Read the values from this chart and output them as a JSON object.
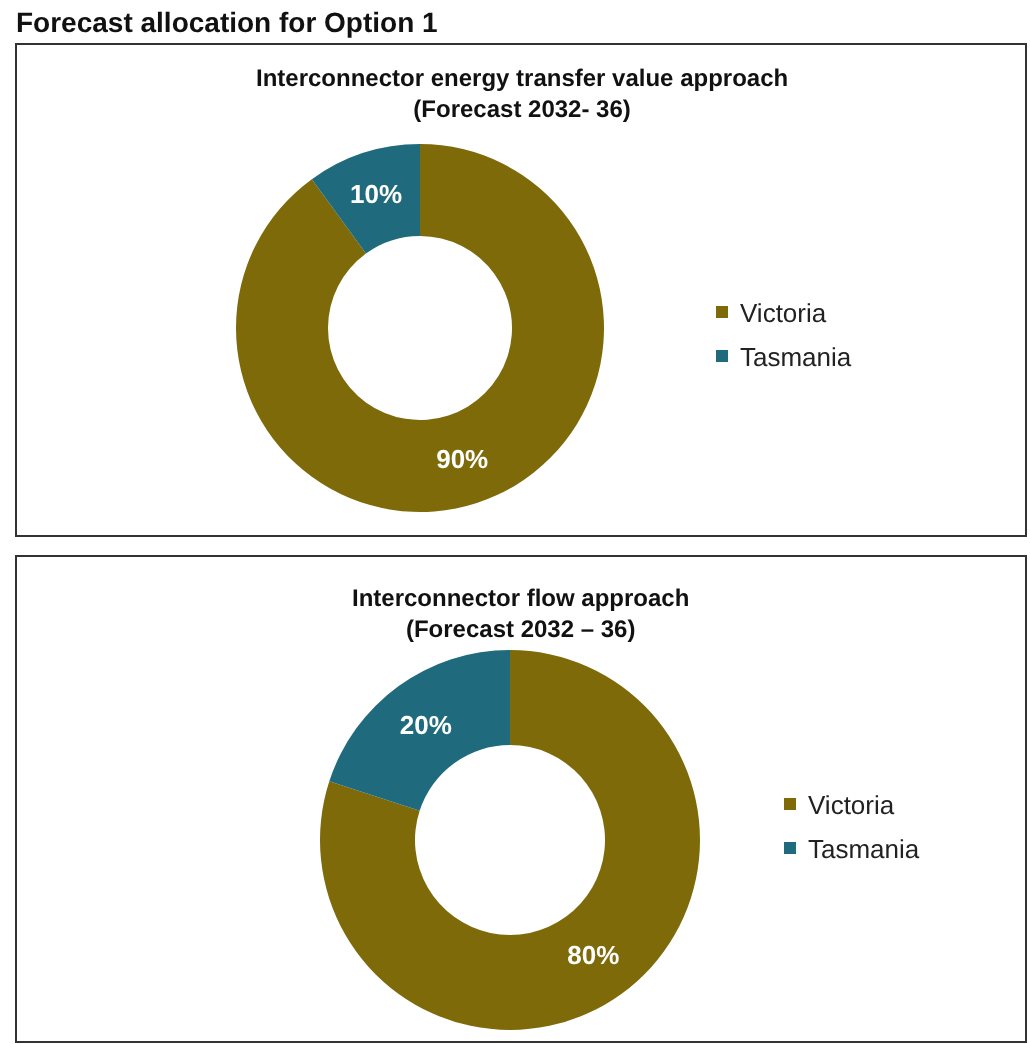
{
  "chart_data": [
    {
      "type": "donut",
      "title": "Interconnector energy transfer value approach\n(Forecast 2032- 36)",
      "annotations": [
        "Forecast allocation for Option 1"
      ],
      "categories": [
        "Victoria",
        "Tasmania"
      ],
      "values": [
        90,
        10
      ],
      "value_labels": [
        "90%",
        "10%"
      ],
      "colors": [
        "#7f6a0a",
        "#1f6b7d"
      ],
      "legend": "right"
    },
    {
      "type": "donut",
      "title": "Interconnector flow approach\n(Forecast 2032 – 36)",
      "categories": [
        "Victoria",
        "Tasmania"
      ],
      "values": [
        80,
        20
      ],
      "value_labels": [
        "80%",
        "20%"
      ],
      "colors": [
        "#7f6a0a",
        "#1f6b7d"
      ],
      "legend": "right"
    }
  ]
}
